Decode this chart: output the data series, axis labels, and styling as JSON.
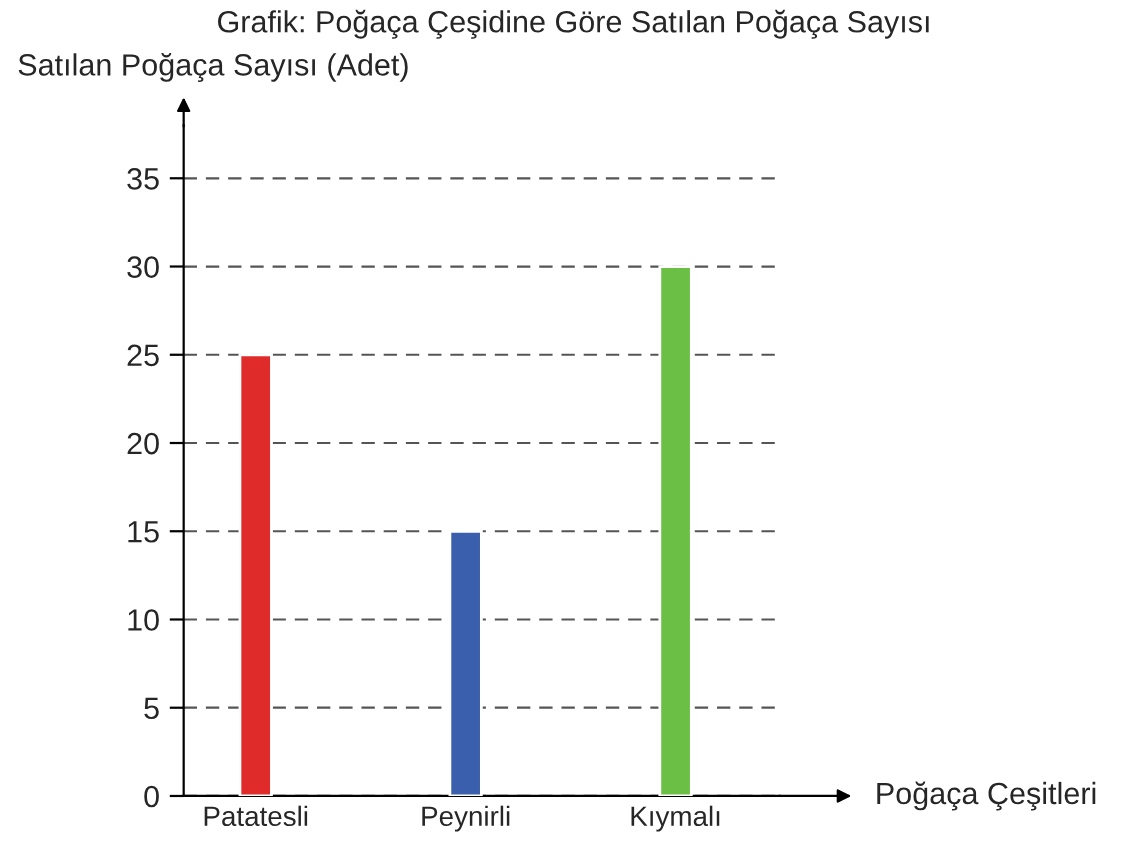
{
  "chart_data": {
    "type": "bar",
    "title": "Grafik: Poğaça Çeşidine Göre Satılan Poğaça Sayısı",
    "xlabel": "Poğaça Çeşitleri",
    "ylabel": "Satılan Poğaça Sayısı (Adet)",
    "categories": [
      "Patatesli",
      "Peynirli",
      "Kıymalı"
    ],
    "values": [
      25,
      15,
      30
    ],
    "colors": [
      "#e02b2b",
      "#3a5fad",
      "#6cbf45"
    ],
    "ylim": [
      0,
      38
    ],
    "yticks": [
      0,
      5,
      10,
      15,
      20,
      25,
      30,
      35
    ],
    "grid": "y",
    "line_style": "dashed",
    "legend": false
  }
}
